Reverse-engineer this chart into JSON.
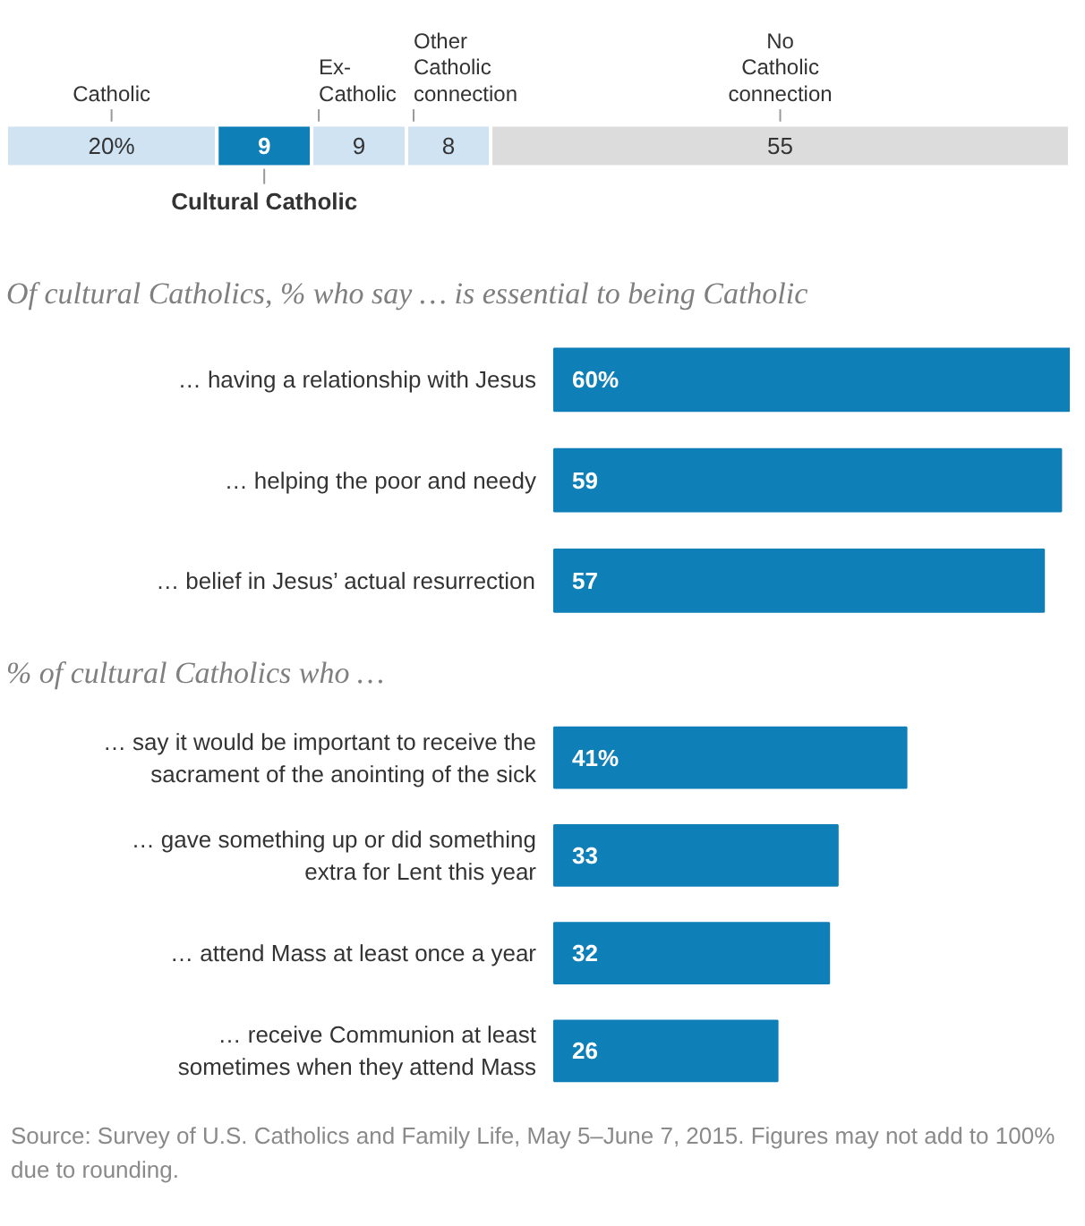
{
  "chart_data": [
    {
      "type": "bar",
      "orientation": "horizontal",
      "stacked": true,
      "categories": [
        null
      ],
      "tick_labels": false,
      "grid": false,
      "series": [
        {
          "name": "Catholic",
          "color": "#cfe3f3",
          "values": [
            20
          ],
          "value_labels": [
            "20%"
          ]
        },
        {
          "name": "Cultural Catholic",
          "color": "#0f7fb8",
          "values": [
            9
          ],
          "value_labels": [
            "9"
          ]
        },
        {
          "name": "Ex-Catholic",
          "color": "#cfe3f3",
          "values": [
            9
          ],
          "value_labels": [
            "9"
          ]
        },
        {
          "name": "Other Catholic connection",
          "color": "#cfe3f3",
          "values": [
            8
          ],
          "value_labels": [
            "8"
          ]
        },
        {
          "name": "No Catholic connection",
          "color": "#dcdcdc",
          "values": [
            55
          ],
          "value_labels": [
            "55"
          ]
        }
      ]
    },
    {
      "type": "bar",
      "orientation": "horizontal",
      "title": "Of cultural Catholics, % who say … is essential to being Catholic",
      "categories": [
        "… having a relationship with Jesus",
        "… helping the poor and needy",
        "… belief in Jesus’ actual resurrection"
      ],
      "values": [
        60,
        59,
        57
      ],
      "value_labels": [
        "60%",
        "59",
        "57"
      ],
      "color": "#0f7fb8",
      "tick_labels": "y",
      "grid": false
    },
    {
      "type": "bar",
      "orientation": "horizontal",
      "title": "% of cultural Catholics who …",
      "categories": [
        "… say it would be important to receive the\nsacrament of the anointing of the sick",
        "… gave something up or did something\nextra for Lent this year",
        "… attend Mass at least once a year",
        "… receive Communion at least\nsometimes when they attend Mass"
      ],
      "values": [
        41,
        33,
        32,
        26
      ],
      "value_labels": [
        "41%",
        "33",
        "32",
        "26"
      ],
      "color": "#0f7fb8",
      "tick_labels": "y",
      "grid": false,
      "annotations": [
        "Source: Survey of U.S. Catholics and Family Life, May 5–June 7, 2015. Figures may not add to 100% due to rounding."
      ]
    }
  ]
}
